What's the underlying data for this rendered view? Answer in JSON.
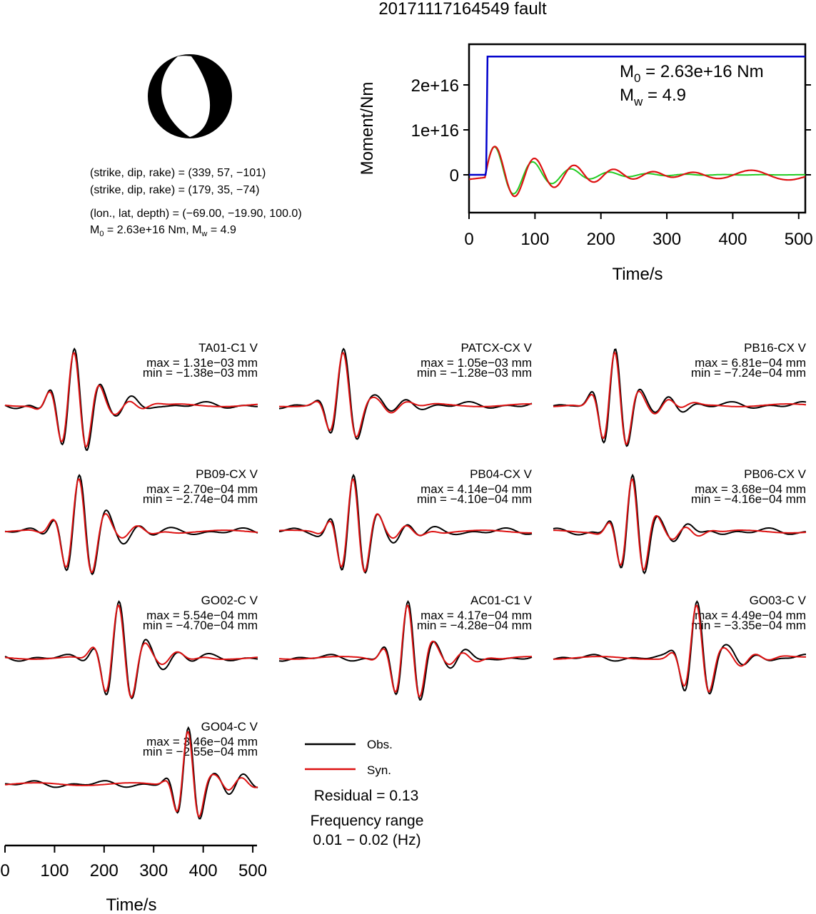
{
  "title": "20171117164549 fault",
  "mechanism": {
    "planes": [
      "(strike, dip, rake) = (339, 57, −101)",
      "(strike, dip, rake) = (179, 35, −74)"
    ],
    "location": "(lon., lat, depth) = (−69.00, −19.90, 100.0)",
    "magnitude_line": "M0 = 2.63e+16 Nm, Mw = 4.9",
    "m0_label": "M",
    "m0_sub": "0",
    "m0_value": " = 2.63e+16 Nm, ",
    "mw_label": "M",
    "mw_sub": "w",
    "mw_value": " = 4.9"
  },
  "stf": {
    "ylabel": "Moment/Nm",
    "xlabel": "Time/s",
    "yticks": [
      "2e+16",
      "1e+16",
      "0"
    ],
    "xticks": [
      "0",
      "100",
      "200",
      "300",
      "400",
      "500"
    ],
    "m0_text": " = 2.63e+16 Nm",
    "mw_text": " = 4.9",
    "colors": {
      "moment": "#0000cc",
      "green": "#22cc22",
      "red": "#dd1111"
    }
  },
  "legend": {
    "obs": "Obs.",
    "syn": "Syn.",
    "residual": "Residual = 0.13",
    "freq_title": "Frequency range",
    "freq_range": "0.01 − 0.02 (Hz)"
  },
  "bottom_axis": {
    "xlabel": "Time/s",
    "xticks": [
      "0",
      "100",
      "200",
      "300",
      "400",
      "500"
    ]
  },
  "chart_data": [
    {
      "type": "line",
      "title": "",
      "xlabel": "Time/s",
      "ylabel": "Moment/Nm",
      "xlim": [
        0,
        510
      ],
      "ylim": [
        -8500000000000000.0,
        2.9e+16
      ],
      "series": [
        {
          "color": "#0000cc",
          "x": [
            0,
            25,
            26,
            28,
            510
          ],
          "values": [
            0,
            0,
            1000000000000000.0,
            2.63e+16,
            2.63e+16
          ]
        }
      ]
    },
    {
      "type": "line",
      "title": "",
      "xlabel": "Time/s",
      "ylabel": "",
      "xlim": [
        0,
        510
      ],
      "stations": [
        {
          "name": "TA01-C1 V",
          "max": "max = 1.31e−03 mm",
          "min": "min = −1.38e−03 mm"
        },
        {
          "name": "PATCX-CX V",
          "max": "max = 1.05e−03 mm",
          "min": "min = −1.28e−03 mm"
        },
        {
          "name": "PB16-CX V",
          "max": "max = 6.81e−04 mm",
          "min": "min = −7.24e−04 mm"
        },
        {
          "name": "PB09-CX V",
          "max": "max = 2.70e−04 mm",
          "min": "min = −2.74e−04 mm"
        },
        {
          "name": "PB04-CX V",
          "max": "max = 4.14e−04 mm",
          "min": "min = −4.10e−04 mm"
        },
        {
          "name": "PB06-CX V",
          "max": "max = 3.68e−04 mm",
          "min": "min = −4.16e−04 mm"
        },
        {
          "name": "GO02-C V",
          "max": "max = 5.54e−04 mm",
          "min": "min = −4.70e−04 mm"
        },
        {
          "name": "AC01-C1 V",
          "max": "max = 4.17e−04 mm",
          "min": "min = −4.28e−04 mm"
        },
        {
          "name": "GO03-C V",
          "max": "max = 4.49e−04 mm",
          "min": "min = −3.35e−04 mm"
        },
        {
          "name": "GO04-C V",
          "max": "max = 3.46e−04 mm",
          "min": "min = −2.55e−04 mm"
        }
      ],
      "series_colors": {
        "obs": "#000000",
        "syn": "#dd1111"
      }
    }
  ]
}
